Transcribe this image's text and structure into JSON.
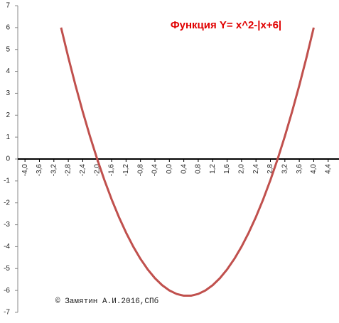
{
  "chart_data": {
    "type": "line",
    "title": "Функция Y= x^2-|x+6|",
    "annotation": "© Замятин А.И.2016,СПб",
    "x": [
      -3.0,
      -2.8,
      -2.6,
      -2.4,
      -2.2,
      -2.0,
      -1.8,
      -1.6,
      -1.4,
      -1.2,
      -1.0,
      -0.8,
      -0.6,
      -0.4,
      -0.2,
      0,
      0.2,
      0.4,
      0.6,
      0.8,
      1.0,
      1.2,
      1.4,
      1.6,
      1.8,
      2.0,
      2.2,
      2.4,
      2.6,
      2.8,
      3.0,
      3.2,
      3.4,
      3.6,
      3.8,
      4.0
    ],
    "series": [
      {
        "color": "#c0504d",
        "values": [
          6,
          4.64,
          3.36,
          2.16,
          1.04,
          0,
          -0.96,
          -1.84,
          -2.64,
          -3.36,
          -4,
          -4.56,
          -5.04,
          -5.44,
          -5.76,
          -6,
          -6.16,
          -6.24,
          -6.24,
          -6.16,
          -6,
          -5.76,
          -5.44,
          -5.04,
          -4.56,
          -4,
          -3.36,
          -2.64,
          -1.84,
          -0.96,
          0,
          1.04,
          2.16,
          3.36,
          4.64,
          6
        ]
      }
    ],
    "xlim": [
      -4.2,
      4.7
    ],
    "ylim": [
      -7,
      7
    ],
    "xticks": [
      {
        "value": -4,
        "label": "-4,0"
      },
      {
        "value": -3.6,
        "label": "-3,6"
      },
      {
        "value": -3.2,
        "label": "-3,2"
      },
      {
        "value": -2.8,
        "label": "-2,8"
      },
      {
        "value": -2.4,
        "label": "-2,4"
      },
      {
        "value": -2,
        "label": "-2,0"
      },
      {
        "value": -1.6,
        "label": "-1,6"
      },
      {
        "value": -1.2,
        "label": "-1,2"
      },
      {
        "value": -0.8,
        "label": "-0,8"
      },
      {
        "value": -0.4,
        "label": "-0,4"
      },
      {
        "value": 0,
        "label": "0,0"
      },
      {
        "value": 0.4,
        "label": "0,4"
      },
      {
        "value": 0.8,
        "label": "0,8"
      },
      {
        "value": 1.2,
        "label": "1,2"
      },
      {
        "value": 1.6,
        "label": "1,6"
      },
      {
        "value": 2,
        "label": "2,0"
      },
      {
        "value": 2.4,
        "label": "2,4"
      },
      {
        "value": 2.8,
        "label": "2,8"
      },
      {
        "value": 3.2,
        "label": "3,2"
      },
      {
        "value": 3.6,
        "label": "3,6"
      },
      {
        "value": 4,
        "label": "4,0"
      },
      {
        "value": 4.4,
        "label": "4,4"
      }
    ],
    "yticks": [
      7,
      6,
      5,
      4,
      3,
      2,
      1,
      0,
      -1,
      -2,
      -3,
      -4,
      -5,
      -6,
      -7
    ],
    "grid": false
  }
}
